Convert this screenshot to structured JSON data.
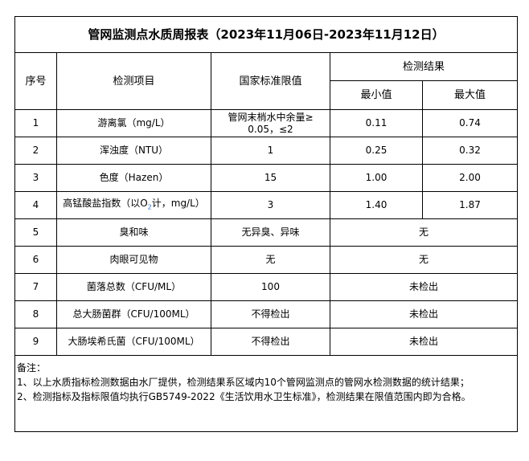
{
  "title": "管网监测点水质周报表（2023年11月06日-2023年11月12日）",
  "headers": {
    "index": "序号",
    "item": "检测项目",
    "standard": "国家标准限值",
    "result": "检测结果",
    "min": "最小值",
    "max": "最大值"
  },
  "rows": [
    {
      "index": "1",
      "item": "游离氯（mg/L）",
      "standard": "管网末梢水中余量≥ 0.05，≤2",
      "min": "0.11",
      "max": "0.74"
    },
    {
      "index": "2",
      "item": "浑浊度（NTU）",
      "standard": "1",
      "min": "0.25",
      "max": "0.32"
    },
    {
      "index": "3",
      "item": "色度（Hazen）",
      "standard": "15",
      "min": "1.00",
      "max": "2.00"
    },
    {
      "index": "4",
      "item_pre": "高锰酸盐指数（以O",
      "item_sub": "2",
      "item_post": "计，mg/L）",
      "standard": "3",
      "min": "1.40",
      "max": "1.87"
    },
    {
      "index": "5",
      "item": "臭和味",
      "standard": "无异臭、异味",
      "result": "无"
    },
    {
      "index": "6",
      "item": "肉眼可见物",
      "standard": "无",
      "result": "无"
    },
    {
      "index": "7",
      "item": "菌落总数（CFU/ML）",
      "standard": "100",
      "result": "未检出"
    },
    {
      "index": "8",
      "item": "总大肠菌群（CFU/100ML）",
      "standard": "不得检出",
      "result": "未检出"
    },
    {
      "index": "9",
      "item": "大肠埃希氏菌（CFU/100ML）",
      "standard": "不得检出",
      "result": "未检出"
    }
  ],
  "notes": {
    "label": "备注：",
    "line1": "1、以上水质指标检测数据由水厂提供，检测结果系区域内10个管网监测点的管网水检测数据的统计结果；",
    "line2": "2、检测指标及指标限值均执行GB5749-2022《生活饮用水卫生标准》，检测结果在限值范围内即为合格。"
  }
}
